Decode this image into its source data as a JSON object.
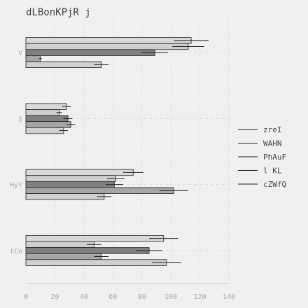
{
  "chart_data": {
    "type": "bar",
    "orientation": "horizontal",
    "title": "dLBonKPjR j",
    "xlabel": "",
    "ylabel": "",
    "xlim": [
      0,
      140
    ],
    "x_ticks": [
      0,
      20,
      40,
      60,
      80,
      100,
      120,
      140
    ],
    "categories": [
      "V",
      "S",
      "HyY",
      "tCo"
    ],
    "grid": true,
    "legend_position": "right",
    "series": [
      {
        "name": "zreI",
        "color": "#d9d9d9",
        "values": [
          114,
          28,
          74,
          95
        ],
        "errors": [
          12,
          3,
          7,
          10
        ]
      },
      {
        "name": "WAHN",
        "color": "#cfcfcf",
        "values": [
          112,
          23,
          62,
          47
        ],
        "errors": [
          11,
          2,
          6,
          5
        ]
      },
      {
        "name": "PhAuF",
        "color": "#808080",
        "values": [
          89,
          29,
          61,
          85
        ],
        "errors": [
          9,
          3,
          6,
          9
        ]
      },
      {
        "name": "l KL",
        "color": "#a6a6a6",
        "values": [
          10,
          31,
          102,
          52
        ],
        "errors": [
          1,
          3,
          10,
          5
        ]
      },
      {
        "name": "cZWfQ",
        "color": "#d0d0d0",
        "values": [
          52,
          26,
          54,
          97
        ],
        "errors": [
          5,
          3,
          5,
          10
        ]
      }
    ]
  }
}
